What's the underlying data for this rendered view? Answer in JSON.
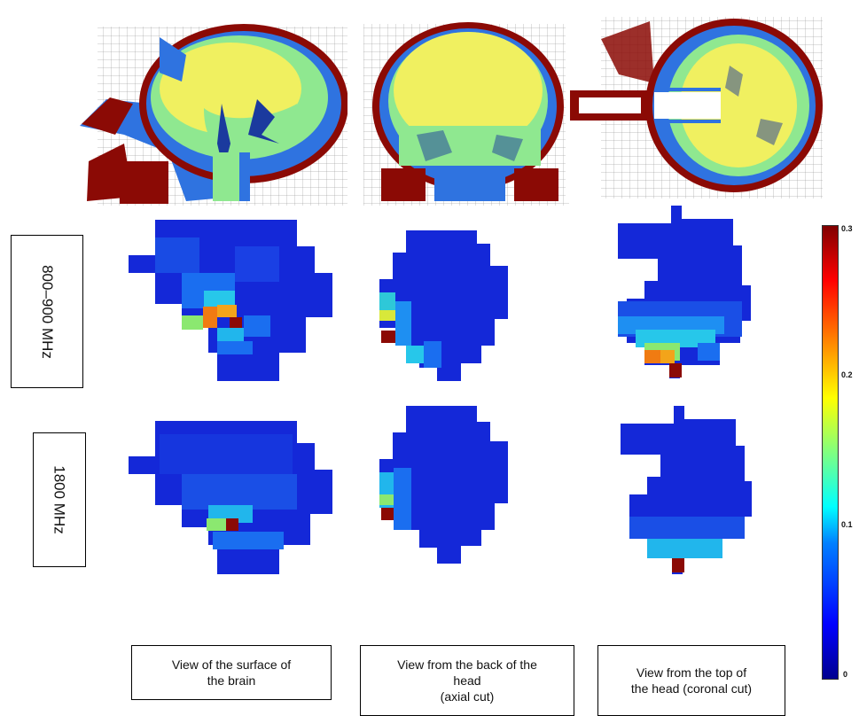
{
  "row_labels": [
    "800–900 MHz",
    "1800 MHz"
  ],
  "captions": [
    "View of the surface of\nthe brain",
    "View from the back of the\nhead\n(axial cut)",
    "View from the top of\nthe head (coronal cut)"
  ],
  "colorbar": {
    "ticks": [
      "0.3",
      "0.2",
      "0.1",
      "0"
    ],
    "min": 0,
    "max": 0.3,
    "colormap": "jet"
  },
  "colors": {
    "dark_red": "#8b0a05",
    "csf_blue": "#2f73e0",
    "brain_yellow": "#f0f060",
    "brain_green": "#8fe890",
    "vessel_blue": "#1b3a9e",
    "base_blue": "#1428d8"
  }
}
